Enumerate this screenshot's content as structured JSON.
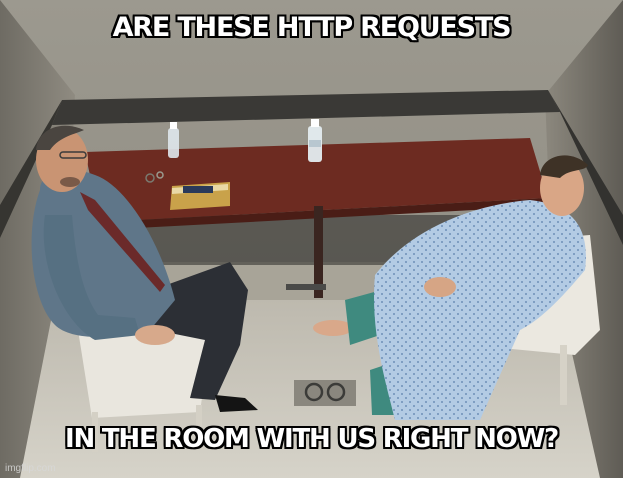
{
  "meme": {
    "top_text": "ARE THESE HTTP REQUESTS",
    "bottom_text": "IN THE ROOM WITH US RIGHT NOW?",
    "watermark": "imgflip.com"
  },
  "colors": {
    "text": "#ffffff",
    "text_outline": "#000000",
    "wall": "#8a8780",
    "floor": "#cfccc2",
    "table_top": "#6a2a20",
    "chair": "#e8e4dc",
    "man_shirt": "#5e7588",
    "gown": "#a9c4e0"
  },
  "icons": [
    "water-bottle",
    "handcuffs",
    "notepad"
  ]
}
